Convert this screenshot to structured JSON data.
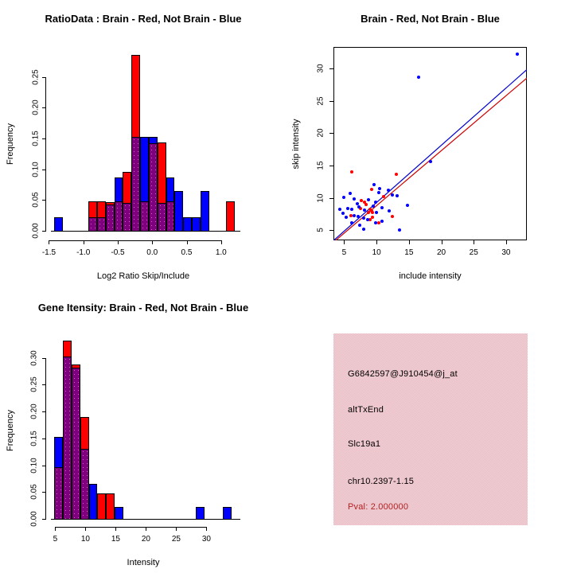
{
  "colors": {
    "brain_red": "#FF0000",
    "not_brain_blue": "#0000FF",
    "overlap_purple": "#7F007F",
    "fit_line_blue": "#0000CC",
    "fit_line_red": "#CC0000",
    "axis_black": "#000000",
    "info_panel_pink": "#F2C3CC",
    "pval_text": "#B22222"
  },
  "chart_data": [
    {
      "id": "ratio_histogram",
      "type": "bar",
      "subtype": "overlaid-histogram",
      "title": "RatioData : Brain - Red, Not Brain - Blue",
      "xlabel": "Log2 Ratio Skip/Include",
      "ylabel": "Frequency",
      "xlim": [
        -1.54,
        1.28
      ],
      "ylim": [
        -0.0155,
        0.2985
      ],
      "xticks": [
        -1.5,
        -1.0,
        -0.5,
        0.0,
        0.5,
        1.0
      ],
      "xtick_labels": [
        "-1.5",
        "-1.0",
        "-0.5",
        "0.0",
        "0.5",
        "1.0"
      ],
      "yticks": [
        0.0,
        0.05,
        0.1,
        0.15,
        0.2,
        0.25
      ],
      "ytick_labels": [
        "0.00",
        "0.05",
        "0.10",
        "0.15",
        "0.20",
        "0.25"
      ],
      "bin_width": 0.125,
      "bars": [
        {
          "x0": -1.425,
          "color": "not_brain_blue",
          "height": 0.022,
          "overlap": 0
        },
        {
          "x0": -0.925,
          "color": "brain_red",
          "height": 0.048,
          "overlap": 0.022
        },
        {
          "x0": -0.8,
          "color": "brain_red",
          "height": 0.048,
          "overlap": 0.022
        },
        {
          "x0": -0.675,
          "color": "brain_red",
          "height": 0.046,
          "overlap": 0.043
        },
        {
          "x0": -0.55,
          "color": "not_brain_blue",
          "height": 0.087,
          "overlap": 0.048
        },
        {
          "x0": -0.425,
          "color": "brain_red",
          "height": 0.095,
          "overlap": 0.045
        },
        {
          "x0": -0.3,
          "color": "brain_red",
          "height": 0.285,
          "overlap": 0.152
        },
        {
          "x0": -0.175,
          "color": "not_brain_blue",
          "height": 0.152,
          "overlap": 0.048
        },
        {
          "x0": -0.05,
          "color": "not_brain_blue",
          "height": 0.153,
          "overlap": 0.142
        },
        {
          "x0": 0.075,
          "color": "brain_red",
          "height": 0.143,
          "overlap": 0.045
        },
        {
          "x0": 0.2,
          "color": "not_brain_blue",
          "height": 0.087,
          "overlap": 0.048
        },
        {
          "x0": 0.325,
          "color": "not_brain_blue",
          "height": 0.065,
          "overlap": 0
        },
        {
          "x0": 0.45,
          "color": "not_brain_blue",
          "height": 0.022,
          "overlap": 0
        },
        {
          "x0": 0.575,
          "color": "not_brain_blue",
          "height": 0.022,
          "overlap": 0
        },
        {
          "x0": 0.7,
          "color": "not_brain_blue",
          "height": 0.065,
          "overlap": 0
        },
        {
          "x0": 1.075,
          "color": "brain_red",
          "height": 0.048,
          "overlap": 0
        }
      ]
    },
    {
      "id": "intensity_scatter",
      "type": "scatter",
      "title": "Brain - Red, Not Brain - Blue",
      "xlabel": "include intensity",
      "ylabel": "skip intensity",
      "xlim": [
        3.35,
        33.2
      ],
      "ylim": [
        3.45,
        33.3
      ],
      "xticks": [
        5,
        10,
        15,
        20,
        25,
        30
      ],
      "xtick_labels": [
        "5",
        "10",
        "15",
        "20",
        "25",
        "30"
      ],
      "yticks": [
        5,
        10,
        15,
        20,
        25,
        30
      ],
      "ytick_labels": [
        "5",
        "10",
        "15",
        "20",
        "25",
        "30"
      ],
      "series": [
        {
          "name": "brain",
          "color": "brain_red",
          "points": [
            [
              6.2,
              14.0
            ],
            [
              13.0,
              13.6
            ],
            [
              9.3,
              11.3
            ],
            [
              11.1,
              10.2
            ],
            [
              7.7,
              9.6
            ],
            [
              8.1,
              9.4
            ],
            [
              8.4,
              9.0
            ],
            [
              7.5,
              8.4
            ],
            [
              9.0,
              8.3
            ],
            [
              9.2,
              8.0
            ],
            [
              8.8,
              7.8
            ],
            [
              9.4,
              7.7
            ],
            [
              6.0,
              7.2
            ],
            [
              9.4,
              7.0
            ],
            [
              12.5,
              7.1
            ],
            [
              9.0,
              6.6
            ],
            [
              10.4,
              6.2
            ]
          ]
        },
        {
          "name": "not_brain",
          "color": "not_brain_blue",
          "points": [
            [
              31.7,
              32.2
            ],
            [
              16.5,
              28.6
            ],
            [
              18.3,
              15.6
            ],
            [
              9.6,
              12.0
            ],
            [
              10.5,
              11.4
            ],
            [
              11.8,
              11.2
            ],
            [
              10.4,
              10.8
            ],
            [
              12.4,
              10.5
            ],
            [
              13.2,
              10.3
            ],
            [
              5.9,
              10.7
            ],
            [
              5.0,
              10.1
            ],
            [
              6.5,
              9.8
            ],
            [
              8.8,
              9.7
            ],
            [
              9.8,
              9.3
            ],
            [
              7.0,
              9.1
            ],
            [
              14.8,
              8.9
            ],
            [
              9.5,
              8.7
            ],
            [
              4.3,
              8.2
            ],
            [
              5.5,
              8.4
            ],
            [
              6.2,
              8.3
            ],
            [
              7.3,
              8.6
            ],
            [
              8.2,
              8.1
            ],
            [
              10.9,
              8.5
            ],
            [
              12.0,
              8.0
            ],
            [
              4.8,
              7.6
            ],
            [
              5.3,
              7.0
            ],
            [
              6.6,
              7.3
            ],
            [
              7.1,
              7.1
            ],
            [
              8.0,
              6.9
            ],
            [
              8.6,
              6.7
            ],
            [
              10.0,
              7.8
            ],
            [
              6.2,
              6.1
            ],
            [
              7.4,
              5.8
            ],
            [
              9.8,
              6.1
            ],
            [
              10.8,
              6.4
            ],
            [
              8.0,
              5.2
            ],
            [
              13.6,
              5.1
            ]
          ]
        }
      ],
      "fit_lines": [
        {
          "name": "red_fit",
          "color": "fit_line_red",
          "x1": 3.7,
          "y1": 3.45,
          "x2": 33.2,
          "y2": 28.5
        },
        {
          "name": "blue_fit",
          "color": "fit_line_blue",
          "x1": 3.4,
          "y1": 3.45,
          "x2": 33.2,
          "y2": 29.8
        }
      ]
    },
    {
      "id": "gene_histogram",
      "type": "bar",
      "subtype": "overlaid-histogram",
      "title": "Gene Itensity: Brain - Red, Not Brain - Blue",
      "xlabel": "Intensity",
      "ylabel": "Frequency",
      "xlim": [
        3.5,
        35.6
      ],
      "ylim": [
        -0.0148,
        0.344
      ],
      "xticks": [
        5,
        10,
        15,
        20,
        25,
        30
      ],
      "xtick_labels": [
        "5",
        "10",
        "15",
        "20",
        "25",
        "30"
      ],
      "yticks": [
        0.0,
        0.05,
        0.1,
        0.15,
        0.2,
        0.25,
        0.3
      ],
      "ytick_labels": [
        "0.00",
        "0.05",
        "0.10",
        "0.15",
        "0.20",
        "0.25",
        "0.30"
      ],
      "bin_width": 1.42,
      "bars": [
        {
          "x0": 4.87,
          "color": "not_brain_blue",
          "height": 0.153,
          "overlap": 0.096
        },
        {
          "x0": 6.29,
          "color": "brain_red",
          "height": 0.332,
          "overlap": 0.303
        },
        {
          "x0": 7.71,
          "color": "brain_red",
          "height": 0.287,
          "overlap": 0.282
        },
        {
          "x0": 9.13,
          "color": "brain_red",
          "height": 0.19,
          "overlap": 0.131
        },
        {
          "x0": 10.55,
          "color": "not_brain_blue",
          "height": 0.066,
          "overlap": 0
        },
        {
          "x0": 11.97,
          "color": "brain_red",
          "height": 0.048,
          "overlap": 0
        },
        {
          "x0": 13.39,
          "color": "brain_red",
          "height": 0.048,
          "overlap": 0
        },
        {
          "x0": 14.81,
          "color": "not_brain_blue",
          "height": 0.022,
          "overlap": 0
        },
        {
          "x0": 28.25,
          "color": "not_brain_blue",
          "height": 0.022,
          "overlap": 0
        },
        {
          "x0": 32.7,
          "color": "not_brain_blue",
          "height": 0.022,
          "overlap": 0
        }
      ]
    }
  ],
  "info_panel": {
    "lines": [
      {
        "text": "G6842597@J910454@j_at"
      },
      {
        "text": "altTxEnd"
      },
      {
        "text": "Slc19a1"
      },
      {
        "text": "chr10.2397-1.15"
      },
      {
        "text": "Pval: 2.000000"
      }
    ]
  }
}
